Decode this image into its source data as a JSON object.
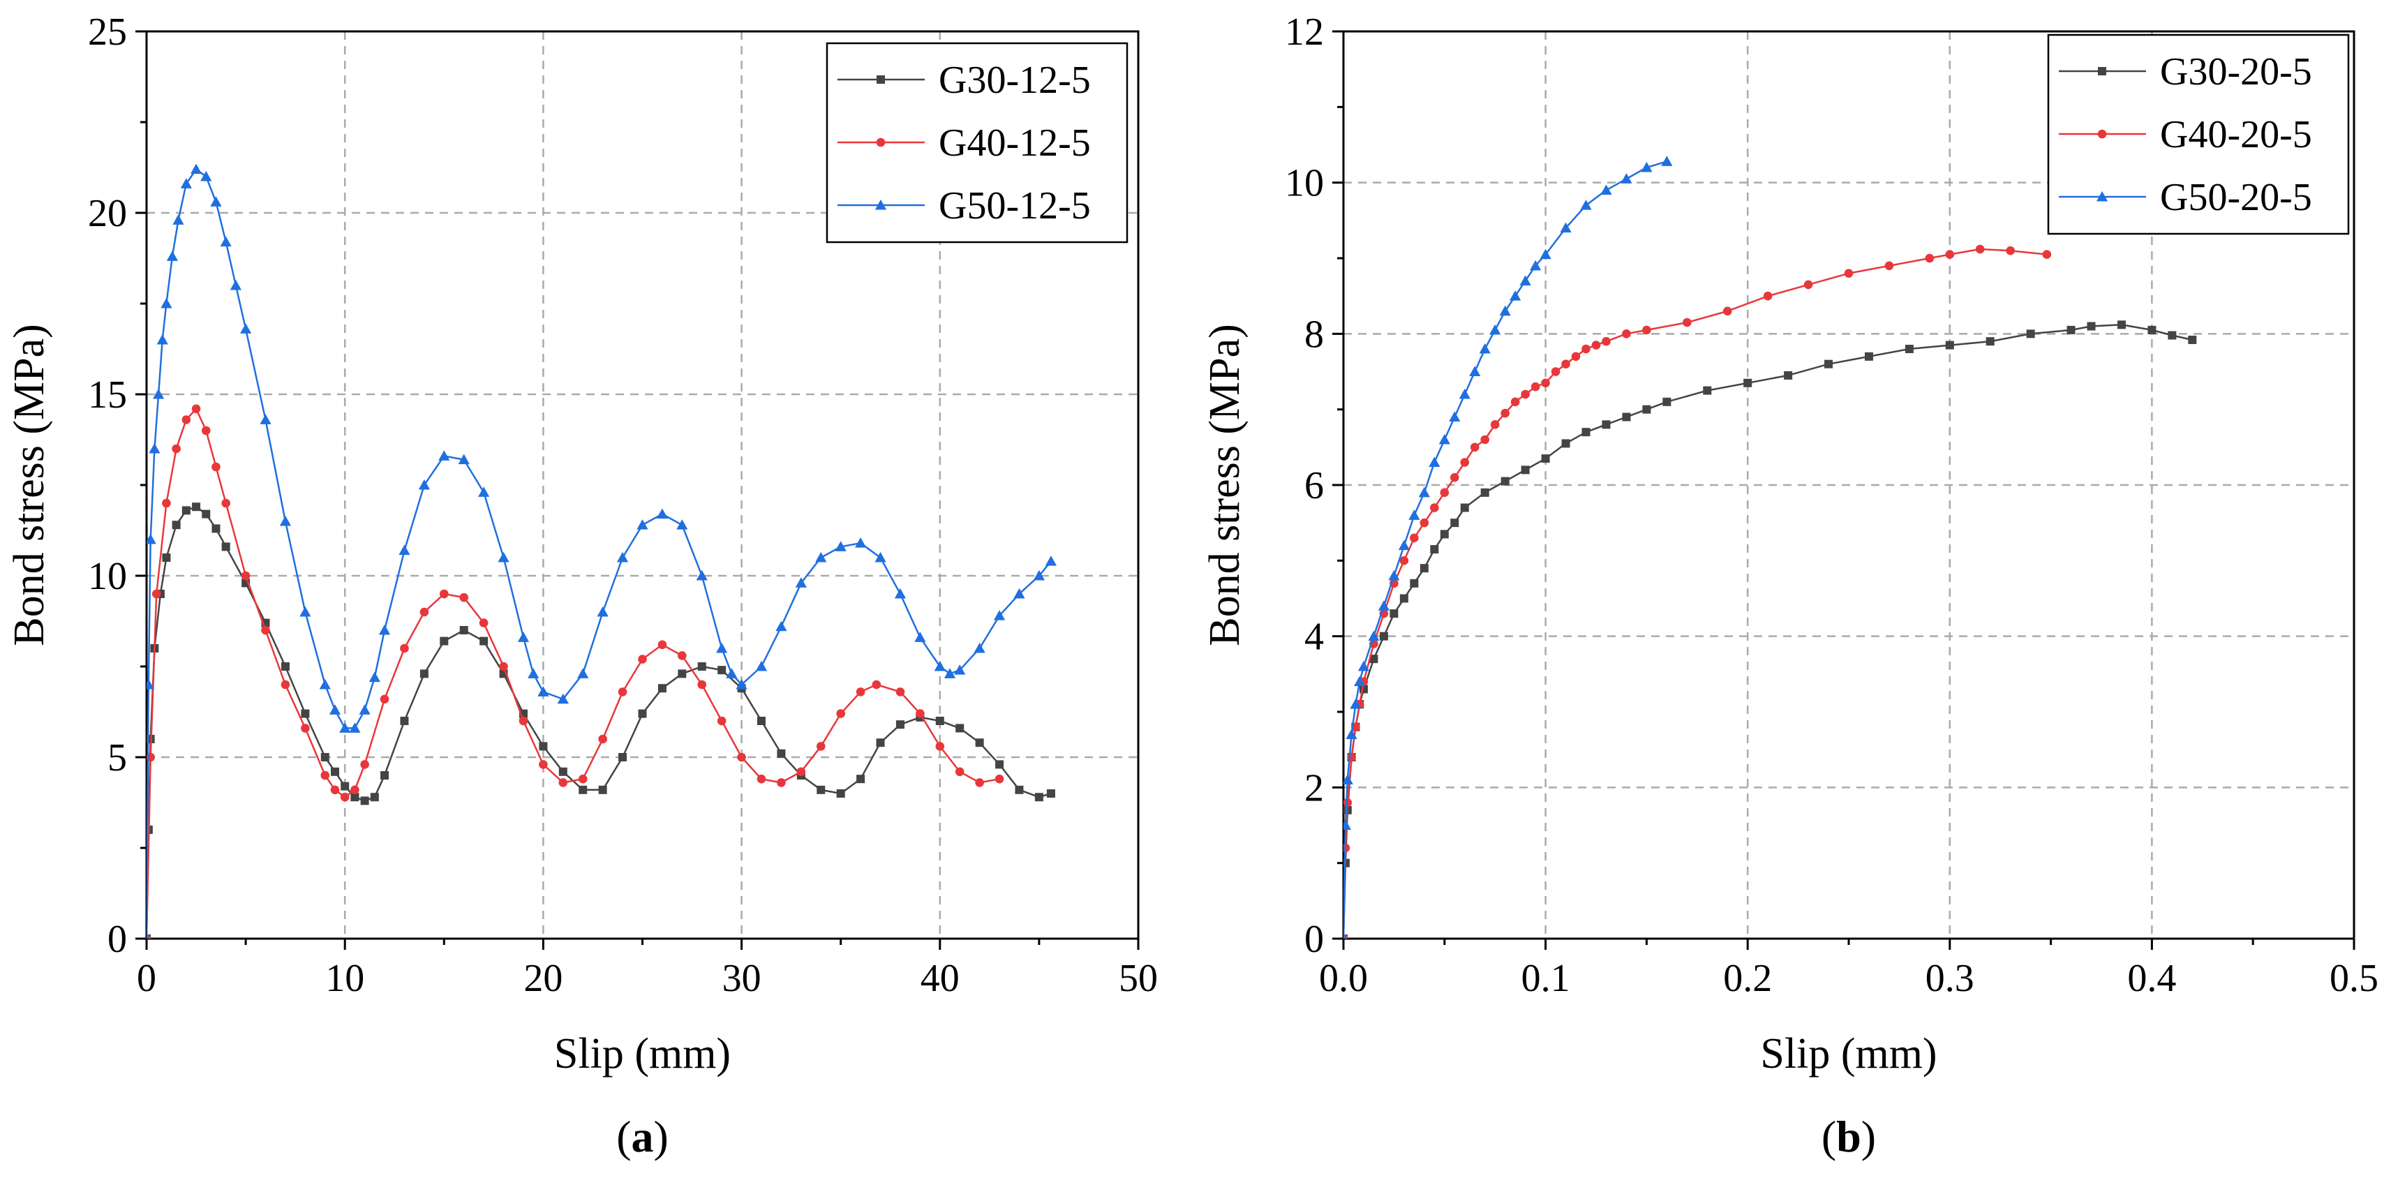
{
  "chart_data": [
    {
      "type": "line",
      "panel_label": "a",
      "xlabel": "Slip (mm)",
      "ylabel": "Bond stress (MPa)",
      "xlim": [
        0,
        50
      ],
      "ylim": [
        0,
        25
      ],
      "xticks": [
        "0",
        "10",
        "20",
        "30",
        "40",
        "50"
      ],
      "yticks": [
        "0",
        "5",
        "10",
        "15",
        "20",
        "25"
      ],
      "grid": true,
      "legend_position": "top-right",
      "series": [
        {
          "name": "G30-12-5",
          "color": "#444444",
          "marker": "square",
          "x": [
            0,
            0.1,
            0.2,
            0.4,
            0.7,
            1.0,
            1.5,
            2.0,
            2.5,
            3.0,
            3.5,
            4.0,
            5.0,
            6.0,
            7.0,
            8.0,
            9.0,
            9.5,
            10.0,
            10.5,
            11.0,
            11.5,
            12.0,
            13.0,
            14.0,
            15.0,
            16.0,
            17.0,
            18.0,
            19.0,
            20.0,
            21.0,
            22.0,
            23.0,
            24.0,
            25.0,
            26.0,
            27.0,
            28.0,
            29.0,
            30.0,
            31.0,
            32.0,
            33.0,
            34.0,
            35.0,
            36.0,
            37.0,
            38.0,
            39.0,
            40.0,
            41.0,
            42.0,
            43.0,
            44.0,
            45.0,
            45.6
          ],
          "y": [
            0,
            3.0,
            5.5,
            8.0,
            9.5,
            10.5,
            11.4,
            11.8,
            11.9,
            11.7,
            11.3,
            10.8,
            9.8,
            8.7,
            7.5,
            6.2,
            5.0,
            4.6,
            4.2,
            3.9,
            3.8,
            3.9,
            4.5,
            6.0,
            7.3,
            8.2,
            8.5,
            8.2,
            7.3,
            6.2,
            5.3,
            4.6,
            4.1,
            4.1,
            5.0,
            6.2,
            6.9,
            7.3,
            7.5,
            7.4,
            6.9,
            6.0,
            5.1,
            4.5,
            4.1,
            4.0,
            4.4,
            5.4,
            5.9,
            6.1,
            6.0,
            5.8,
            5.4,
            4.8,
            4.1,
            3.9,
            4.0
          ]
        },
        {
          "name": "G40-12-5",
          "color": "#e8373b",
          "marker": "circle",
          "x": [
            0,
            0.2,
            0.5,
            1.0,
            1.5,
            2.0,
            2.5,
            3.0,
            3.5,
            4.0,
            5.0,
            6.0,
            7.0,
            8.0,
            9.0,
            9.5,
            10.0,
            10.5,
            11.0,
            12.0,
            13.0,
            14.0,
            15.0,
            16.0,
            17.0,
            18.0,
            19.0,
            20.0,
            21.0,
            22.0,
            23.0,
            24.0,
            25.0,
            26.0,
            27.0,
            28.0,
            29.0,
            30.0,
            31.0,
            32.0,
            33.0,
            34.0,
            35.0,
            36.0,
            36.8,
            38.0,
            39.0,
            40.0,
            41.0,
            42.0,
            43.0
          ],
          "y": [
            0,
            5.0,
            9.5,
            12.0,
            13.5,
            14.3,
            14.6,
            14.0,
            13.0,
            12.0,
            10.0,
            8.5,
            7.0,
            5.8,
            4.5,
            4.1,
            3.9,
            4.1,
            4.8,
            6.6,
            8.0,
            9.0,
            9.5,
            9.4,
            8.7,
            7.5,
            6.0,
            4.8,
            4.3,
            4.4,
            5.5,
            6.8,
            7.7,
            8.1,
            7.8,
            7.0,
            6.0,
            5.0,
            4.4,
            4.3,
            4.6,
            5.3,
            6.2,
            6.8,
            7.0,
            6.8,
            6.2,
            5.3,
            4.6,
            4.3,
            4.4
          ]
        },
        {
          "name": "G50-12-5",
          "color": "#1f6fe0",
          "marker": "triangle",
          "x": [
            0,
            0.1,
            0.2,
            0.4,
            0.6,
            0.8,
            1.0,
            1.3,
            1.6,
            2.0,
            2.5,
            3.0,
            3.5,
            4.0,
            4.5,
            5.0,
            6.0,
            7.0,
            8.0,
            9.0,
            9.5,
            10.0,
            10.5,
            11.0,
            11.5,
            12.0,
            13.0,
            14.0,
            15.0,
            16.0,
            17.0,
            18.0,
            19.0,
            19.5,
            20.0,
            21.0,
            22.0,
            23.0,
            24.0,
            25.0,
            26.0,
            27.0,
            28.0,
            29.0,
            29.5,
            30.0,
            31.0,
            32.0,
            33.0,
            34.0,
            35.0,
            36.0,
            37.0,
            38.0,
            39.0,
            40.0,
            40.5,
            41.0,
            42.0,
            43.0,
            44.0,
            45.0,
            45.6
          ],
          "y": [
            0,
            7.0,
            11.0,
            13.5,
            15.0,
            16.5,
            17.5,
            18.8,
            19.8,
            20.8,
            21.2,
            21.0,
            20.3,
            19.2,
            18.0,
            16.8,
            14.3,
            11.5,
            9.0,
            7.0,
            6.3,
            5.8,
            5.8,
            6.3,
            7.2,
            8.5,
            10.7,
            12.5,
            13.3,
            13.2,
            12.3,
            10.5,
            8.3,
            7.3,
            6.8,
            6.6,
            7.3,
            9.0,
            10.5,
            11.4,
            11.7,
            11.4,
            10.0,
            8.0,
            7.3,
            7.0,
            7.5,
            8.6,
            9.8,
            10.5,
            10.8,
            10.9,
            10.5,
            9.5,
            8.3,
            7.5,
            7.3,
            7.4,
            8.0,
            8.9,
            9.5,
            10.0,
            10.4
          ]
        }
      ]
    },
    {
      "type": "line",
      "panel_label": "b",
      "xlabel": "Slip (mm)",
      "ylabel": "Bond stress (MPa)",
      "xlim": [
        0,
        0.5
      ],
      "ylim": [
        0,
        12
      ],
      "xticks": [
        "0.0",
        "0.1",
        "0.2",
        "0.3",
        "0.4",
        "0.5"
      ],
      "yticks": [
        "0",
        "2",
        "4",
        "6",
        "8",
        "10",
        "12"
      ],
      "grid": true,
      "legend_position": "top-right",
      "series": [
        {
          "name": "G30-20-5",
          "color": "#444444",
          "marker": "square",
          "x": [
            0,
            0.001,
            0.002,
            0.004,
            0.006,
            0.008,
            0.01,
            0.015,
            0.02,
            0.025,
            0.03,
            0.035,
            0.04,
            0.045,
            0.05,
            0.055,
            0.06,
            0.07,
            0.08,
            0.09,
            0.1,
            0.11,
            0.12,
            0.13,
            0.14,
            0.15,
            0.16,
            0.18,
            0.2,
            0.22,
            0.24,
            0.26,
            0.28,
            0.3,
            0.32,
            0.34,
            0.36,
            0.37,
            0.385,
            0.4,
            0.41,
            0.42
          ],
          "y": [
            0,
            1.0,
            1.7,
            2.4,
            2.8,
            3.1,
            3.3,
            3.7,
            4.0,
            4.3,
            4.5,
            4.7,
            4.9,
            5.15,
            5.35,
            5.5,
            5.7,
            5.9,
            6.05,
            6.2,
            6.35,
            6.55,
            6.7,
            6.8,
            6.9,
            7.0,
            7.1,
            7.25,
            7.35,
            7.45,
            7.6,
            7.7,
            7.8,
            7.85,
            7.9,
            8.0,
            8.05,
            8.1,
            8.12,
            8.05,
            7.98,
            7.92
          ]
        },
        {
          "name": "G40-20-5",
          "color": "#e8373b",
          "marker": "circle",
          "x": [
            0,
            0.001,
            0.002,
            0.004,
            0.006,
            0.008,
            0.01,
            0.015,
            0.02,
            0.025,
            0.03,
            0.035,
            0.04,
            0.045,
            0.05,
            0.055,
            0.06,
            0.065,
            0.07,
            0.075,
            0.08,
            0.085,
            0.09,
            0.095,
            0.1,
            0.105,
            0.11,
            0.115,
            0.12,
            0.125,
            0.13,
            0.14,
            0.15,
            0.17,
            0.19,
            0.21,
            0.23,
            0.25,
            0.27,
            0.29,
            0.3,
            0.315,
            0.33,
            0.348
          ],
          "y": [
            0,
            1.2,
            1.8,
            2.4,
            2.8,
            3.1,
            3.4,
            3.9,
            4.3,
            4.7,
            5.0,
            5.3,
            5.5,
            5.7,
            5.9,
            6.1,
            6.3,
            6.5,
            6.6,
            6.8,
            6.95,
            7.1,
            7.2,
            7.3,
            7.35,
            7.5,
            7.6,
            7.7,
            7.8,
            7.85,
            7.9,
            8.0,
            8.05,
            8.15,
            8.3,
            8.5,
            8.65,
            8.8,
            8.9,
            9.0,
            9.05,
            9.12,
            9.1,
            9.05
          ]
        },
        {
          "name": "G50-20-5",
          "color": "#1f6fe0",
          "marker": "triangle",
          "x": [
            0,
            0.001,
            0.002,
            0.004,
            0.006,
            0.008,
            0.01,
            0.015,
            0.02,
            0.025,
            0.03,
            0.035,
            0.04,
            0.045,
            0.05,
            0.055,
            0.06,
            0.065,
            0.07,
            0.075,
            0.08,
            0.085,
            0.09,
            0.095,
            0.1,
            0.11,
            0.12,
            0.13,
            0.14,
            0.15,
            0.16
          ],
          "y": [
            0,
            1.5,
            2.1,
            2.7,
            3.1,
            3.4,
            3.6,
            4.0,
            4.4,
            4.8,
            5.2,
            5.6,
            5.9,
            6.3,
            6.6,
            6.9,
            7.2,
            7.5,
            7.8,
            8.05,
            8.3,
            8.5,
            8.7,
            8.9,
            9.05,
            9.4,
            9.7,
            9.9,
            10.05,
            10.2,
            10.28
          ]
        }
      ]
    }
  ]
}
